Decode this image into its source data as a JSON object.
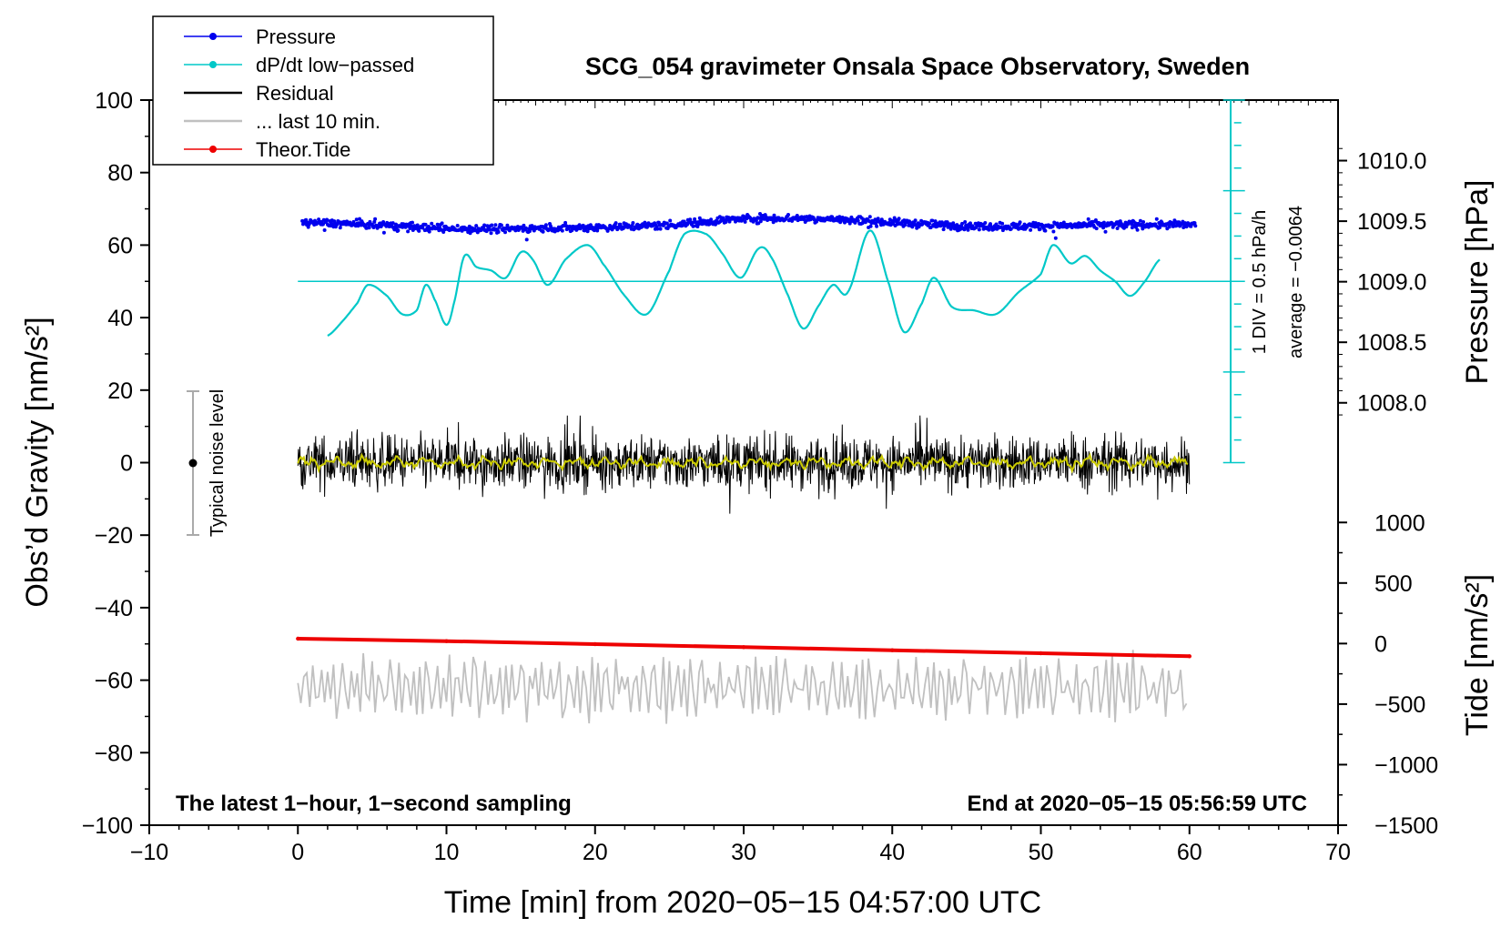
{
  "chart_data": {
    "type": "line",
    "title": "SCG_054 gravimeter Onsala Space Observatory, Sweden",
    "xlabel": "Time [min] from 2020−05−15 04:57:00 UTC",
    "ylabel": "Obs’d Gravity [nm/s²]",
    "ylabel_right_pressure": "Pressure [hPa]",
    "ylabel_right_tide": "Tide [nm/s²]",
    "xlim": [
      -10,
      70
    ],
    "ylim": [
      -100,
      100
    ],
    "xticks": [
      -10,
      0,
      10,
      20,
      30,
      40,
      50,
      60,
      70
    ],
    "xtick_labels": [
      "−10",
      "0",
      "10",
      "20",
      "30",
      "40",
      "50",
      "60",
      "70"
    ],
    "yticks": [
      -100,
      -80,
      -60,
      -40,
      -20,
      0,
      20,
      40,
      60,
      80,
      100
    ],
    "ytick_labels": [
      "−100",
      "−80",
      "−60",
      "−40",
      "−20",
      "0",
      "20",
      "40",
      "60",
      "80",
      "100"
    ],
    "pressure_axis": {
      "ticks": [
        1008.0,
        1008.5,
        1009.0,
        1009.5,
        1010.0
      ],
      "tick_labels": [
        "1008.0",
        "1008.5",
        "1009.0",
        "1009.5",
        "1010.0"
      ],
      "maps_to_gravity": {
        "hPa": [
          1008.0,
          1010.0
        ],
        "nm_s2": [
          16.5,
          83.3
        ]
      }
    },
    "tide_axis": {
      "ticks": [
        -1500,
        -1000,
        -500,
        0,
        500,
        1000
      ],
      "tick_labels": [
        "−1500",
        "−1000",
        "−500",
        "0",
        "500",
        "1000"
      ],
      "maps_to_gravity": {
        "nm_s2_tide": [
          -1500,
          1000
        ],
        "nm_s2": [
          -100,
          -16.5
        ]
      }
    },
    "legend": [
      {
        "label": "Pressure",
        "color": "#0000ee",
        "marker": true
      },
      {
        "label": "dP/dt low−passed",
        "color": "#00c8c8",
        "marker": true
      },
      {
        "label": "Residual",
        "color": "#000000",
        "marker": false
      },
      {
        "label": "... last 10 min.",
        "color": "#c0c0c0",
        "marker": false
      },
      {
        "label": "Theor.Tide",
        "color": "#ee0000",
        "marker": true
      }
    ],
    "series": [
      {
        "name": "Pressure",
        "color": "#0000ee",
        "y_axis": "pressure_hPa",
        "x": [
          0,
          5,
          10,
          15,
          20,
          25,
          30,
          35,
          40,
          45,
          50,
          55,
          60
        ],
        "values": [
          1009.49,
          1009.47,
          1009.44,
          1009.44,
          1009.45,
          1009.47,
          1009.52,
          1009.52,
          1009.49,
          1009.46,
          1009.46,
          1009.47,
          1009.47
        ]
      },
      {
        "name": "dP/dt low−passed",
        "color": "#00c8c8",
        "y_axis": "gravity",
        "x": [
          2,
          3,
          4,
          4.7,
          6,
          7,
          8,
          8.6,
          9.2,
          10,
          10.5,
          11.2,
          12,
          13,
          14,
          15,
          15.8,
          16.8,
          18,
          19.5,
          20.5,
          22,
          23.5,
          25,
          26,
          27.5,
          28.5,
          29.8,
          31,
          31.8,
          33,
          34,
          35,
          36,
          37,
          38.5,
          39.8,
          40.8,
          42,
          42.8,
          44,
          45.5,
          47,
          48.5,
          50,
          50.8,
          52,
          53,
          54,
          55,
          56,
          57,
          58
        ],
        "values": [
          35,
          39,
          44,
          49,
          46,
          41,
          42,
          49,
          45,
          38,
          44,
          57,
          54,
          53,
          51,
          58,
          56,
          49,
          56,
          60,
          55,
          46,
          41,
          53,
          63,
          63,
          58,
          51,
          59,
          57,
          46,
          37,
          43,
          49,
          47,
          64,
          49,
          36,
          44,
          51,
          43,
          42,
          41,
          47,
          52,
          60,
          55,
          57,
          53,
          50,
          46,
          50,
          56
        ]
      },
      {
        "name": "Residual",
        "color": "#000000",
        "y_axis": "gravity",
        "x_range": [
          0,
          60
        ],
        "mean": 0,
        "envelope": [
          -15,
          13
        ]
      },
      {
        "name": "... last 10 min.",
        "color": "#c0c0c0",
        "y_axis": "gravity",
        "x_range": [
          0,
          60
        ],
        "mean": -62,
        "envelope": [
          -75,
          -51
        ]
      },
      {
        "name": "Theor.Tide",
        "color": "#ee0000",
        "y_axis": "tide",
        "x": [
          0,
          10,
          20,
          30,
          40,
          50,
          60
        ],
        "values": [
          40,
          20,
          -5,
          -30,
          -55,
          -80,
          -105
        ]
      }
    ],
    "noise_level": {
      "label": "Typical noise level",
      "x": -7,
      "center": 0,
      "range": [
        -20,
        20
      ]
    },
    "pressure_scale_bar": {
      "label": "1 DIV = 0.5 hPa/h",
      "average_label": "average = −0.0064",
      "x": 63,
      "range": [
        0,
        100
      ],
      "zero_line": 50
    },
    "annotations": {
      "bottom_left": "The latest 1−hour, 1−second sampling",
      "bottom_right": "End at 2020−05−15 05:56:59 UTC"
    }
  },
  "colors": {
    "pressure": "#0000ee",
    "dpdt": "#00c8c8",
    "residual": "#000000",
    "residual_smooth": "#cccc00",
    "last10": "#c0c0c0",
    "tide": "#ee0000",
    "noise_bar": "#aaaaaa"
  }
}
